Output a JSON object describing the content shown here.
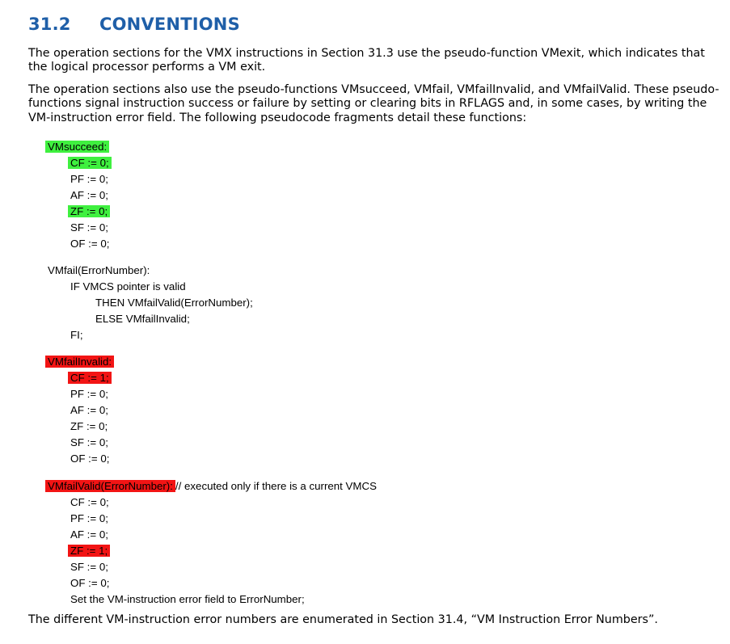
{
  "section": {
    "number": "31.2",
    "title": "CONVENTIONS"
  },
  "paragraphs": {
    "p1": "The operation sections for the VMX instructions in Section 31.3 use the pseudo-function VMexit, which indicates that the logical processor performs a VM exit.",
    "p2": "The operation sections also use the pseudo-functions VMsucceed, VMfail, VMfailInvalid, and VMfailValid. These pseudo-functions signal instruction success or failure by setting or clearing bits in RFLAGS and, in some cases, by writing the VM-instruction error field. The following pseudocode fragments detail these functions:",
    "p3": "The different VM-instruction error numbers are enumerated in Section 31.4, “VM Instruction Error Numbers”."
  },
  "code": {
    "vmsucceed": {
      "header": "VMsucceed:",
      "lines": [
        "CF := 0;",
        "PF := 0;",
        "AF := 0;",
        "ZF := 0;",
        "SF := 0;",
        "OF := 0;"
      ]
    },
    "vmfail": {
      "header": "VMfail(ErrorNumber):",
      "if_line": "IF VMCS pointer is valid",
      "then_line": "THEN VMfailValid(ErrorNumber);",
      "else_line": "ELSE VMfailInvalid;",
      "fi_line": "FI;"
    },
    "vmfailinvalid": {
      "header": "VMfailInvalid:",
      "lines": [
        "CF := 1;",
        "PF := 0;",
        "AF := 0;",
        "ZF := 0;",
        "SF := 0;",
        "OF := 0;"
      ]
    },
    "vmfailvalid": {
      "header": "VMfailValid(ErrorNumber):",
      "comment": "// executed only if there is a current VMCS",
      "lines": [
        "CF := 0;",
        "PF := 0;",
        "AF := 0;",
        "ZF := 1;",
        "SF := 0;",
        "OF := 0;"
      ],
      "set_line": "Set the VM-instruction error field to ErrorNumber;"
    }
  },
  "highlights": {
    "green": "#3ff03f",
    "red": "#f21414"
  }
}
